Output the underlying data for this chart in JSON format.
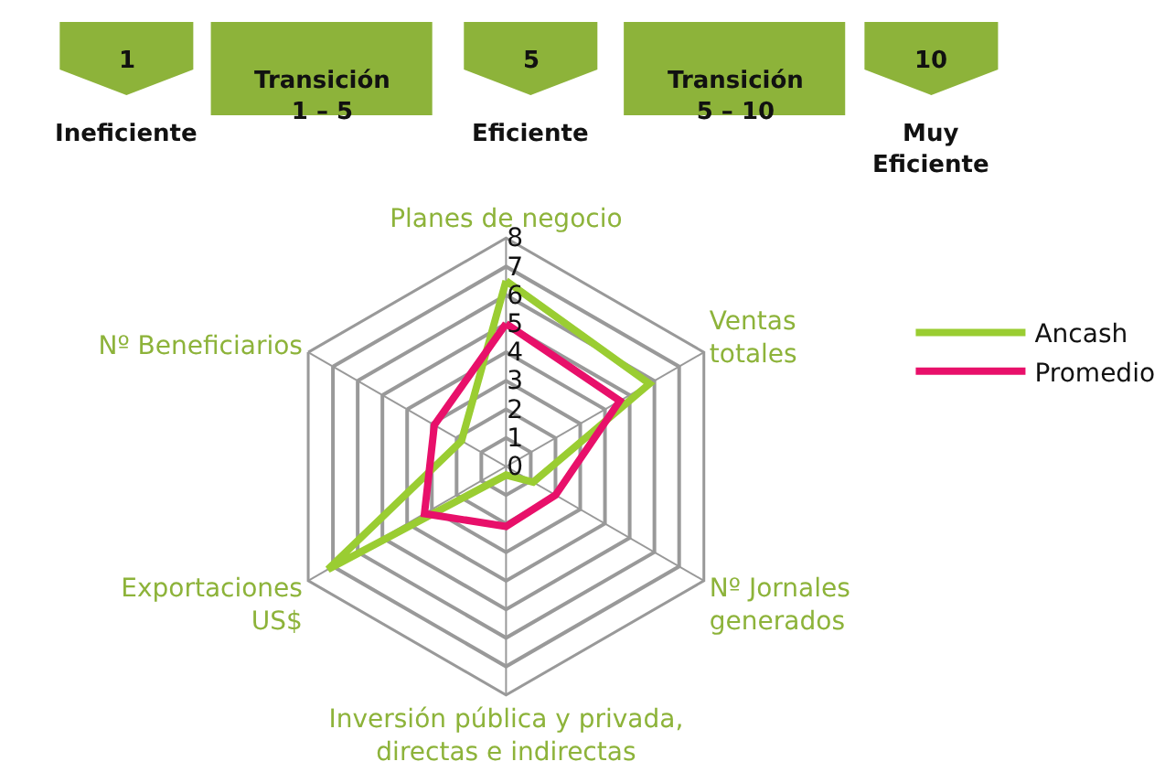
{
  "chart_data": {
    "type": "radar",
    "categories": [
      "Planes de negocio",
      "Ventas\ntotales",
      "Nº Jornales\ngenerados",
      "Inversión pública y privada,\ndirectas e indirectas",
      "Exportaciones\nUS$",
      "Nº Beneficiarios"
    ],
    "series": [
      {
        "name": "Ancash",
        "color": "#9acd32",
        "values": [
          6.5,
          5.8,
          1.1,
          0.3,
          7.2,
          1.8
        ]
      },
      {
        "name": "Promedio",
        "color": "#e8106a",
        "values": [
          5.0,
          4.6,
          2.0,
          2.1,
          3.3,
          2.9
        ]
      }
    ],
    "ylim": [
      0,
      8
    ],
    "yticks": [
      0,
      1,
      2,
      3,
      4,
      5,
      6,
      7,
      8
    ],
    "grid": true,
    "legend": "right",
    "marker": "none",
    "line_style": "solid",
    "annotations": [
      "1",
      "Transición\n1 – 5",
      "5",
      "Transición\n5 – 10",
      "10",
      "Ineficiente",
      "Eficiente",
      "Muy\nEficiente"
    ]
  }
}
